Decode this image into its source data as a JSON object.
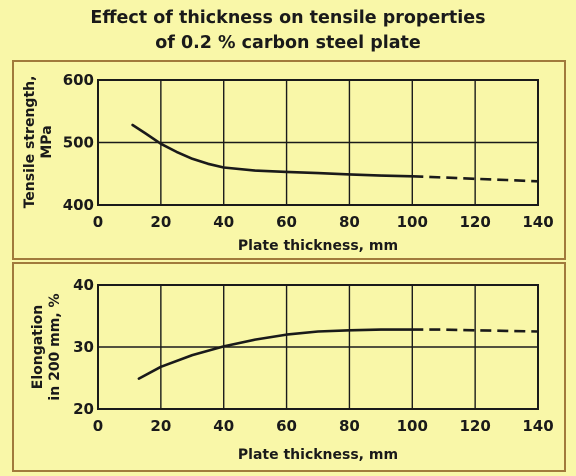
{
  "title": {
    "line1": "Effect of thickness on tensile properties",
    "line2": "of 0.2 % carbon steel plate"
  },
  "colors": {
    "background": "#f9f7a8",
    "panel_border": "#a17a3c",
    "line": "#1a1a1a"
  },
  "chart_data": [
    {
      "type": "line",
      "xlabel": "Plate thickness, mm",
      "ylabel_lines": [
        "Tensile strength,",
        "MPa"
      ],
      "xlim": [
        0,
        140
      ],
      "ylim": [
        400,
        600
      ],
      "x_ticks": [
        0,
        20,
        40,
        60,
        80,
        100,
        120,
        140
      ],
      "y_ticks": [
        400,
        500,
        600
      ],
      "grid": true,
      "series": [
        {
          "style": "solid",
          "x": [
            11,
            15,
            20,
            25,
            30,
            35,
            40,
            50,
            60,
            70,
            80,
            90,
            100
          ],
          "y": [
            528,
            515,
            498,
            485,
            474,
            466,
            460,
            455,
            453,
            451,
            449,
            447,
            446
          ]
        },
        {
          "style": "dashed",
          "x": [
            100,
            110,
            120,
            130,
            140
          ],
          "y": [
            446,
            444,
            442,
            440,
            438
          ]
        }
      ]
    },
    {
      "type": "line",
      "xlabel": "Plate thickness, mm",
      "ylabel_lines": [
        "Elongation",
        "in 200 mm, %"
      ],
      "xlim": [
        0,
        140
      ],
      "ylim": [
        20,
        40
      ],
      "x_ticks": [
        0,
        20,
        40,
        60,
        80,
        100,
        120,
        140
      ],
      "y_ticks": [
        20,
        30,
        40
      ],
      "grid": true,
      "series": [
        {
          "style": "solid",
          "x": [
            13,
            20,
            30,
            40,
            50,
            60,
            70,
            80,
            90,
            100
          ],
          "y": [
            24.9,
            26.8,
            28.7,
            30.1,
            31.2,
            32.0,
            32.5,
            32.7,
            32.8,
            32.8
          ]
        },
        {
          "style": "dashed",
          "x": [
            100,
            110,
            120,
            130,
            140
          ],
          "y": [
            32.8,
            32.8,
            32.7,
            32.6,
            32.5
          ]
        }
      ]
    }
  ]
}
